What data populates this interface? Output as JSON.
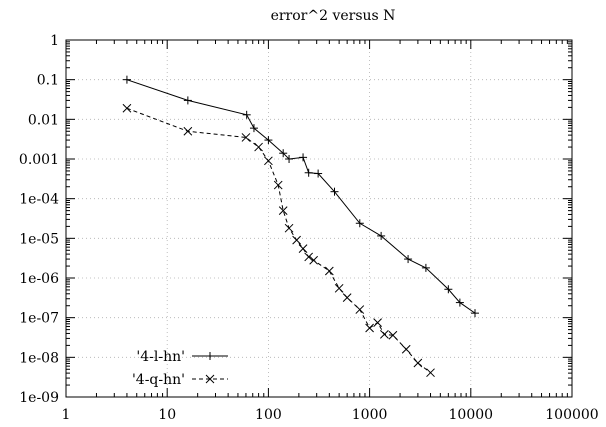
{
  "chart_data": {
    "type": "line",
    "title": "error^2 versus N",
    "xlabel": "",
    "ylabel": "",
    "xscale": "log",
    "yscale": "log",
    "xlim": [
      1,
      100000
    ],
    "ylim": [
      1e-09,
      1
    ],
    "grid": true,
    "legend_position": "bottom-left",
    "x_tick_labels": [
      "1",
      "10",
      "100",
      "1000",
      "10000",
      "100000"
    ],
    "y_tick_labels": [
      "1",
      "0.1",
      "0.01",
      "0.001",
      "1e-04",
      "1e-05",
      "1e-06",
      "1e-07",
      "1e-08",
      "1e-09"
    ],
    "series": [
      {
        "name": "'4-l-hn'",
        "line_style": "solid",
        "marker": "plus",
        "x": [
          4,
          16,
          61,
          72,
          100,
          140,
          160,
          220,
          250,
          310,
          450,
          800,
          1300,
          2400,
          3600,
          6000,
          7800,
          11000
        ],
        "y": [
          0.1,
          0.03,
          0.013,
          0.006,
          0.003,
          0.0014,
          0.001,
          0.0011,
          0.00045,
          0.00043,
          0.00015,
          2.4e-05,
          1.15e-05,
          3e-06,
          1.8e-06,
          5.2e-07,
          2.4e-07,
          1.3e-07
        ]
      },
      {
        "name": "'4-q-hn'",
        "line_style": "dashed",
        "marker": "cross",
        "x": [
          4,
          16,
          60,
          80,
          100,
          125,
          140,
          160,
          190,
          220,
          250,
          280,
          400,
          500,
          600,
          800,
          1000,
          1200,
          1400,
          1700,
          2300,
          3000,
          4000
        ],
        "y": [
          0.019,
          0.005,
          0.0035,
          0.002,
          0.0009,
          0.00022,
          5e-05,
          1.8e-05,
          9e-06,
          5.5e-06,
          3.4e-06,
          2.8e-06,
          1.5e-06,
          5.5e-07,
          3.2e-07,
          1.6e-07,
          5.5e-08,
          7.5e-08,
          3.8e-08,
          3.6e-08,
          1.6e-08,
          7.2e-09,
          4.1e-09
        ]
      }
    ]
  }
}
